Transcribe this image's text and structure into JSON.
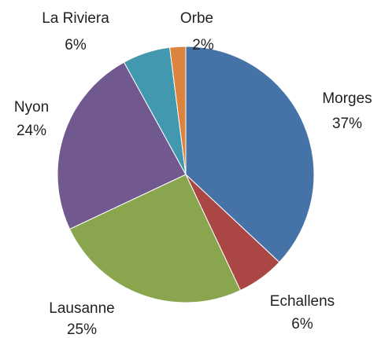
{
  "chart_data": {
    "type": "pie",
    "categories": [
      "Morges",
      "Echallens",
      "Lausanne",
      "Nyon",
      "La Riviera",
      "Orbe"
    ],
    "values": [
      37,
      6,
      25,
      24,
      6,
      2
    ],
    "value_labels": [
      "37%",
      "6%",
      "25%",
      "24%",
      "6%",
      "2%"
    ],
    "colors": [
      "#4572a7",
      "#aa4643",
      "#89a54e",
      "#71588f",
      "#4198af",
      "#db843d"
    ]
  }
}
